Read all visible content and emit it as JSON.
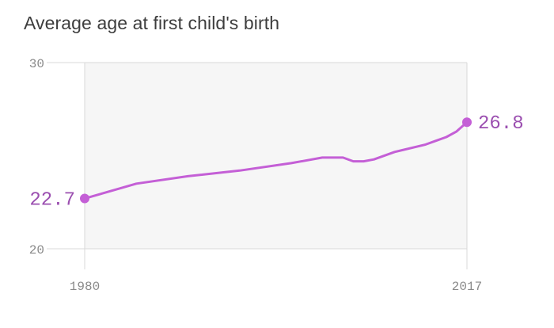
{
  "chart_data": {
    "type": "line",
    "title": "Average age at first child's birth",
    "xlabel": "",
    "ylabel": "",
    "xlim": [
      1980,
      2017
    ],
    "ylim": [
      20,
      30
    ],
    "x_ticks": [
      "1980",
      "2017"
    ],
    "y_ticks": [
      "30",
      "20"
    ],
    "grid": true,
    "legend": "none",
    "colors": {
      "line": "#c45fd6",
      "label": "#9b4fb0",
      "plot_bg": "#f6f6f6",
      "grid": "#d8d8d8",
      "title": "#3d3d3d"
    },
    "series": [
      {
        "x": [
          1980,
          1985,
          1990,
          1995,
          2000,
          2003,
          2005,
          2006,
          2007,
          2008,
          2010,
          2013,
          2014,
          2015,
          2016,
          2017
        ],
        "y": [
          22.7,
          23.5,
          23.9,
          24.2,
          24.6,
          24.9,
          24.9,
          24.7,
          24.7,
          24.8,
          25.2,
          25.6,
          25.8,
          26.0,
          26.3,
          26.8
        ]
      }
    ],
    "end_labels": {
      "start": "22.7",
      "end": "26.8"
    }
  }
}
